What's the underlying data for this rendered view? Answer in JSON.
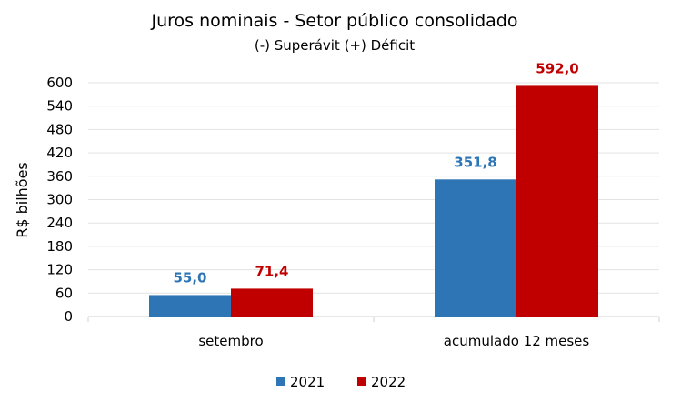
{
  "chart_data": {
    "type": "bar",
    "title": "Juros nominais - Setor público consolidado",
    "subtitle": "(-) Superávit  (+) Déficit",
    "xlabel": "",
    "ylabel": "R$ bilhões",
    "ylim": [
      0,
      600
    ],
    "yticks": [
      0,
      60,
      120,
      180,
      240,
      300,
      360,
      420,
      480,
      540,
      600
    ],
    "grid": true,
    "legend_position": "bottom",
    "categories": [
      "setembro",
      "acumulado 12 meses"
    ],
    "series": [
      {
        "name": "2021",
        "color": "#2E75B6",
        "values": [
          55.0,
          351.8
        ],
        "labels": [
          "55,0",
          "351,8"
        ]
      },
      {
        "name": "2022",
        "color": "#C00000",
        "values": [
          71.4,
          592.0
        ],
        "labels": [
          "71,4",
          "592,0"
        ]
      }
    ]
  }
}
